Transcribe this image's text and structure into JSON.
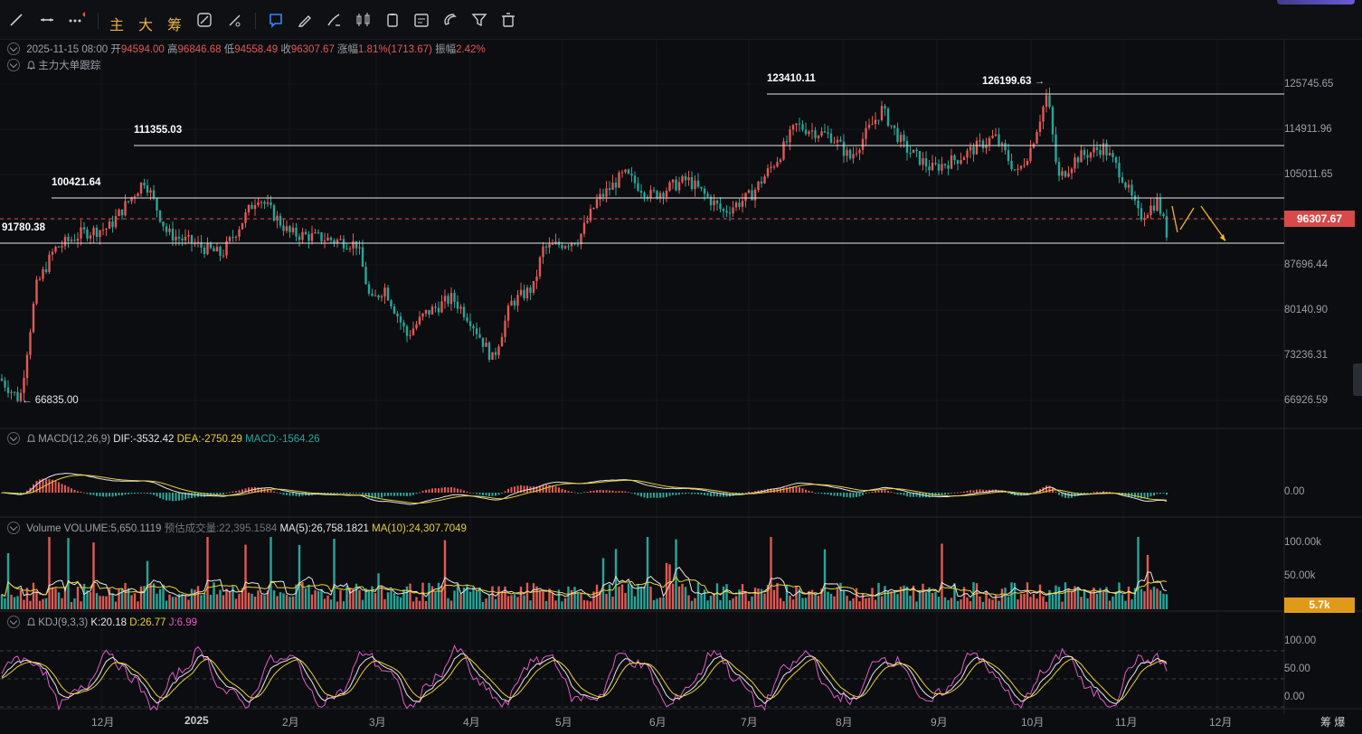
{
  "toolbar": {
    "chars": [
      "主",
      "大",
      "筹"
    ],
    "icons": [
      "line-tool-icon",
      "horizontal-line-icon",
      "more-tools-icon",
      "ruler-icon",
      "measure-icon",
      "callout-icon",
      "pencil-icon",
      "candles-icon",
      "copy-icon",
      "note-icon",
      "magnet-icon",
      "filter-icon",
      "trash-icon"
    ]
  },
  "header": {
    "datetime": "2025-11-15 08:00",
    "open_label": "开",
    "open": "94594.00",
    "high_label": "高",
    "high": "96846.68",
    "low_label": "低",
    "low": "94558.49",
    "close_label": "收",
    "close": "96307.67",
    "change_label": "涨幅",
    "change": "1.81%(1713.67)",
    "amp_label": "振幅",
    "amp": "2.42%",
    "tracker": "主力大单跟踪"
  },
  "price_axis": [
    "125745.65",
    "114911.96",
    "105011.65",
    "87696.44",
    "80140.90",
    "73236.31",
    "66926.59"
  ],
  "current_price": "96307.67",
  "levels": {
    "l1": "123410.11",
    "l2": "126199.63",
    "l3": "111355.03",
    "l4": "100421.64",
    "l5": "91780.38",
    "low_mark": "66835.00"
  },
  "macd": {
    "title": "MACD(12,26,9)",
    "dif": "DIF:-3532.42",
    "dea": "DEA:-2750.29",
    "macd": "MACD:-1564.26",
    "axis": "0.00"
  },
  "volume": {
    "title": "Volume",
    "vol": "VOLUME:5,650.1119",
    "est": "预估成交量:22,395.1584",
    "ma5": "MA(5):26,758.1821",
    "ma10": "MA(10):24,307.7049",
    "axis": [
      "100.00k",
      "50.00k"
    ],
    "current": "5.7k"
  },
  "kdj": {
    "title": "KDJ(9,3,3)",
    "k": "K:20.18",
    "d": "D:26.77",
    "j": "J:6.99",
    "axis": [
      "100.00",
      "50.00",
      "0.00"
    ]
  },
  "time_axis": [
    "12月",
    "2025",
    "2月",
    "3月",
    "4月",
    "5月",
    "6月",
    "7月",
    "8月",
    "9月",
    "10月",
    "11月",
    "12月"
  ],
  "corner_label": "筹 爆",
  "colors": {
    "up": "#e05a55",
    "down": "#26a69a",
    "accent": "#e7b04a",
    "price_badge": "#d64a4a",
    "vol_badge": "#e09a1a"
  }
}
